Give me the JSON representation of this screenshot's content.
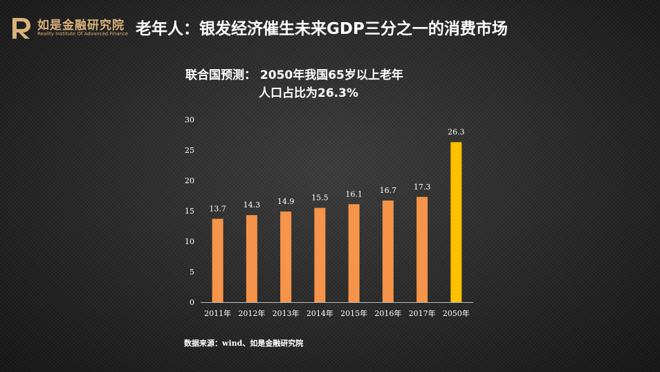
{
  "header": {
    "logo_cn": "如是金融研究院",
    "logo_en": "Reality Institute Of Advanced Finance",
    "title": "老年人：银发经济催生未来GDP三分之一的消费市场"
  },
  "colors": {
    "background": "#2a2a2a",
    "bar_normal": "#f5944a",
    "bar_highlight": "#ffc000",
    "logo_gold": "#d9b27a",
    "text": "#ffffff"
  },
  "chart_data": {
    "type": "bar",
    "title_line1": "联合国预测：  2050年我国65岁以上老年",
    "title_line2": "人口占比为26.3%",
    "categories": [
      "2011年",
      "2012年",
      "2013年",
      "2014年",
      "2015年",
      "2016年",
      "2017年",
      "2050年"
    ],
    "values": [
      13.7,
      14.3,
      14.9,
      15.5,
      16.1,
      16.7,
      17.3,
      26.3
    ],
    "value_labels": [
      "13.7",
      "14.3",
      "14.9",
      "15.5",
      "16.1",
      "16.7",
      "17.3",
      "26.3"
    ],
    "ylim": [
      0,
      30
    ],
    "yticks": [
      "0",
      "5",
      "10",
      "15",
      "20",
      "25",
      "30"
    ],
    "ytick_values": [
      0,
      5,
      10,
      15,
      20,
      25,
      30
    ],
    "highlight_category": "2050年",
    "grid": false,
    "legend": "none"
  },
  "footer": {
    "source": "数据来源：wind、如是金融研究院"
  }
}
